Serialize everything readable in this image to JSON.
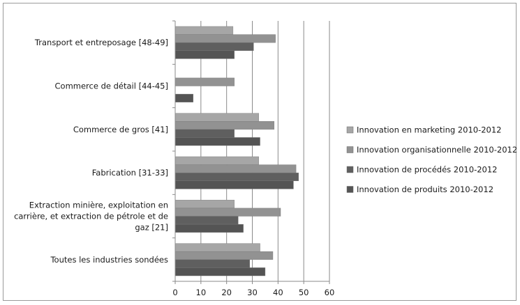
{
  "chart_data": {
    "type": "bar",
    "orientation": "horizontal",
    "title": "",
    "xlabel": "",
    "ylabel": "",
    "xlim": [
      0,
      60
    ],
    "xticks": [
      0,
      10,
      20,
      30,
      40,
      50,
      60
    ],
    "grid": true,
    "legend_position": "right",
    "categories": [
      [
        "Transport et entreposage [48-49]"
      ],
      [
        "Commerce de détail [44-45]"
      ],
      [
        "Commerce de gros [41]"
      ],
      [
        "Fabrication [31-33]"
      ],
      [
        "Extraction minière, exploitation en",
        "carrière, et extraction de pétrole et de",
        "gaz [21]"
      ],
      [
        "Toutes les industries sondées"
      ]
    ],
    "series": [
      {
        "name": "Innovation en marketing 2010-2012",
        "color": "#a6a6a6",
        "values": [
          22.5,
          0,
          32.5,
          32.5,
          23,
          33
        ]
      },
      {
        "name": "Innovation organisationnelle 2010-2012",
        "color": "#929292",
        "values": [
          39,
          23,
          38.5,
          47,
          41,
          38
        ]
      },
      {
        "name": "Innovation de procédés 2010-2012",
        "color": "#5f5f5f",
        "values": [
          30.5,
          0,
          23,
          48,
          24.5,
          29
        ]
      },
      {
        "name": "Innovation de produits 2010-2012",
        "color": "#545454",
        "values": [
          23,
          7,
          33,
          46,
          26.5,
          35
        ]
      }
    ],
    "legend_order": [
      0,
      1,
      2,
      3
    ]
  }
}
